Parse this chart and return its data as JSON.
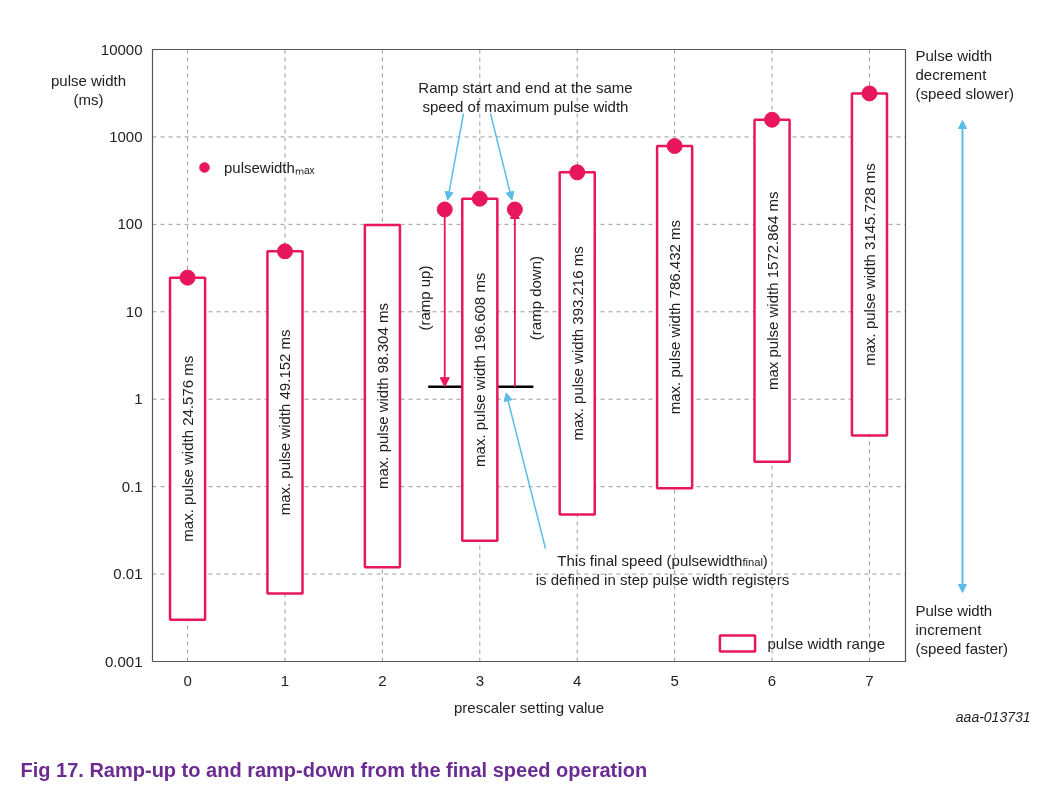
{
  "chart_data": {
    "type": "bar",
    "title": "Fig 17.  Ramp-up to and ramp-down from the final speed operation",
    "xlabel": "prescaler setting value",
    "ylabel": "pulse width\n(ms)",
    "xlim": [
      -0.36,
      7.37
    ],
    "xticks": [
      0,
      1,
      2,
      3,
      4,
      5,
      6,
      7
    ],
    "ylim": [
      0.001,
      10000
    ],
    "yticks": [
      0.001,
      0.01,
      0.1,
      1,
      10,
      100,
      1000,
      10000
    ],
    "log": "y",
    "grid": true,
    "legend": "bottom right",
    "series": [
      {
        "type": "line",
        "color": "#000000",
        "x": [
          2.47,
          3.55
        ],
        "values": [
          1.39,
          1.39
        ]
      },
      {
        "name": "pulse width range",
        "color": "#e8175d",
        "x": [
          0,
          1,
          2,
          3,
          4,
          5,
          6,
          7
        ],
        "base": [
          0.003,
          0.006,
          0.012,
          0.024,
          0.048,
          0.096,
          0.192,
          0.384
        ],
        "values": [
          24.573,
          49.146,
          98.292,
          196.584,
          393.168,
          786.336,
          1572.672,
          3145.344
        ],
        "value_labels": [
          "max. pulse width 24.576 ms",
          "max. pulse width 49.152 ms",
          "max. pulse width 98.304 ms",
          "max. pulse width 196.608 ms",
          "max. pulse width 393.216 ms",
          "max. pulse width 786.432 ms",
          "max pulse width 1572.864 ms",
          "max. pulse width 3145.728 ms"
        ]
      },
      {
        "type": "scatter",
        "name": "pulsewidthₘₐₓ",
        "color": "#e8175d",
        "marker": "circle",
        "x": [
          0,
          1,
          3,
          4,
          5,
          6,
          7,
          2.64,
          3.36
        ],
        "values": [
          24.576,
          49.152,
          196.608,
          393.216,
          786.432,
          1572.864,
          3145.728,
          148,
          148
        ]
      }
    ],
    "annotations": [
      {
        "text": "Ramp start and end at the same\nspeed of maximum pulse width",
        "x": 2.67,
        "y": 190
      },
      "(ramp up)",
      "(ramp down)",
      "This final speed (pulsewidth$_{final}$)\nis defined in step pulse width registers",
      "Pulse width\ndecrement\n(speed slower)",
      "Pulse width\nincrement\n(speed faster)",
      "aaa-013731"
    ]
  }
}
